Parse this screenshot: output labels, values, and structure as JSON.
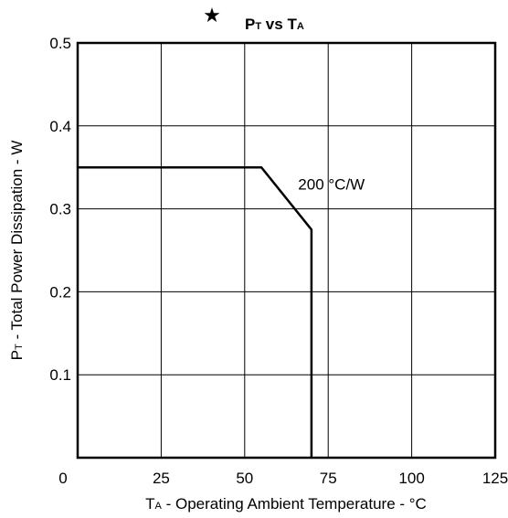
{
  "chart_data": {
    "type": "line",
    "title": {
      "star": "★",
      "main_1": "P",
      "sub_1": "T",
      "middle": " vs ",
      "main_2": "T",
      "sub_2": "A"
    },
    "xlabel": {
      "main": "T",
      "sub": "A",
      "rest": " - Operating Ambient Temperature - °C"
    },
    "ylabel": {
      "main": "P",
      "sub": "T",
      "rest": " - Total Power Dissipation - W"
    },
    "xlim": [
      0,
      125
    ],
    "ylim": [
      0,
      0.5
    ],
    "x_ticks": [
      {
        "value": 0,
        "label": "0"
      },
      {
        "value": 25,
        "label": "25"
      },
      {
        "value": 50,
        "label": "50"
      },
      {
        "value": 75,
        "label": "75"
      },
      {
        "value": 100,
        "label": "100"
      },
      {
        "value": 125,
        "label": "125"
      }
    ],
    "y_ticks": [
      {
        "value": 0.1,
        "label": "0.1"
      },
      {
        "value": 0.2,
        "label": "0.2"
      },
      {
        "value": 0.3,
        "label": "0.3"
      },
      {
        "value": 0.4,
        "label": "0.4"
      },
      {
        "value": 0.5,
        "label": "0.5"
      }
    ],
    "grid": true,
    "series": [
      {
        "x": [
          0,
          55,
          70,
          70,
          70
        ],
        "y": [
          0.35,
          0.35,
          0.275,
          0.275,
          0
        ],
        "color": "#000000"
      }
    ],
    "annotations": [
      {
        "text": "200 °C/W",
        "x": 66,
        "y": 0.33
      }
    ]
  }
}
